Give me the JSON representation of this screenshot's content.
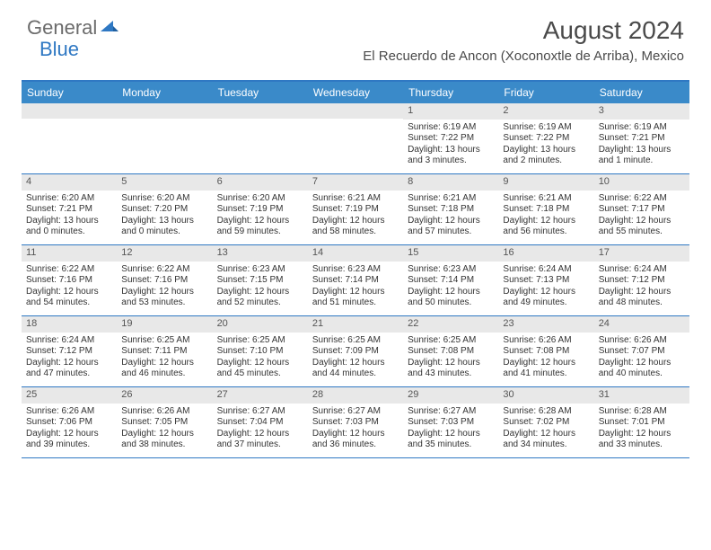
{
  "brand": {
    "part1": "General",
    "part2": "Blue"
  },
  "title": "August 2024",
  "location": "El Recuerdo de Ancon (Xoconoxtle de Arriba), Mexico",
  "dayheaders": [
    "Sunday",
    "Monday",
    "Tuesday",
    "Wednesday",
    "Thursday",
    "Friday",
    "Saturday"
  ],
  "colors": {
    "header_bg": "#3a8ac9",
    "border": "#2f78c3",
    "daynum_bg": "#e8e8e8",
    "text": "#333333",
    "logo_gray": "#6b6b6b",
    "logo_blue": "#2f78c3"
  },
  "weeks": [
    [
      {
        "day": "",
        "sunrise": "",
        "sunset": "",
        "daylight": ""
      },
      {
        "day": "",
        "sunrise": "",
        "sunset": "",
        "daylight": ""
      },
      {
        "day": "",
        "sunrise": "",
        "sunset": "",
        "daylight": ""
      },
      {
        "day": "",
        "sunrise": "",
        "sunset": "",
        "daylight": ""
      },
      {
        "day": "1",
        "sunrise": "Sunrise: 6:19 AM",
        "sunset": "Sunset: 7:22 PM",
        "daylight": "Daylight: 13 hours and 3 minutes."
      },
      {
        "day": "2",
        "sunrise": "Sunrise: 6:19 AM",
        "sunset": "Sunset: 7:22 PM",
        "daylight": "Daylight: 13 hours and 2 minutes."
      },
      {
        "day": "3",
        "sunrise": "Sunrise: 6:19 AM",
        "sunset": "Sunset: 7:21 PM",
        "daylight": "Daylight: 13 hours and 1 minute."
      }
    ],
    [
      {
        "day": "4",
        "sunrise": "Sunrise: 6:20 AM",
        "sunset": "Sunset: 7:21 PM",
        "daylight": "Daylight: 13 hours and 0 minutes."
      },
      {
        "day": "5",
        "sunrise": "Sunrise: 6:20 AM",
        "sunset": "Sunset: 7:20 PM",
        "daylight": "Daylight: 13 hours and 0 minutes."
      },
      {
        "day": "6",
        "sunrise": "Sunrise: 6:20 AM",
        "sunset": "Sunset: 7:19 PM",
        "daylight": "Daylight: 12 hours and 59 minutes."
      },
      {
        "day": "7",
        "sunrise": "Sunrise: 6:21 AM",
        "sunset": "Sunset: 7:19 PM",
        "daylight": "Daylight: 12 hours and 58 minutes."
      },
      {
        "day": "8",
        "sunrise": "Sunrise: 6:21 AM",
        "sunset": "Sunset: 7:18 PM",
        "daylight": "Daylight: 12 hours and 57 minutes."
      },
      {
        "day": "9",
        "sunrise": "Sunrise: 6:21 AM",
        "sunset": "Sunset: 7:18 PM",
        "daylight": "Daylight: 12 hours and 56 minutes."
      },
      {
        "day": "10",
        "sunrise": "Sunrise: 6:22 AM",
        "sunset": "Sunset: 7:17 PM",
        "daylight": "Daylight: 12 hours and 55 minutes."
      }
    ],
    [
      {
        "day": "11",
        "sunrise": "Sunrise: 6:22 AM",
        "sunset": "Sunset: 7:16 PM",
        "daylight": "Daylight: 12 hours and 54 minutes."
      },
      {
        "day": "12",
        "sunrise": "Sunrise: 6:22 AM",
        "sunset": "Sunset: 7:16 PM",
        "daylight": "Daylight: 12 hours and 53 minutes."
      },
      {
        "day": "13",
        "sunrise": "Sunrise: 6:23 AM",
        "sunset": "Sunset: 7:15 PM",
        "daylight": "Daylight: 12 hours and 52 minutes."
      },
      {
        "day": "14",
        "sunrise": "Sunrise: 6:23 AM",
        "sunset": "Sunset: 7:14 PM",
        "daylight": "Daylight: 12 hours and 51 minutes."
      },
      {
        "day": "15",
        "sunrise": "Sunrise: 6:23 AM",
        "sunset": "Sunset: 7:14 PM",
        "daylight": "Daylight: 12 hours and 50 minutes."
      },
      {
        "day": "16",
        "sunrise": "Sunrise: 6:24 AM",
        "sunset": "Sunset: 7:13 PM",
        "daylight": "Daylight: 12 hours and 49 minutes."
      },
      {
        "day": "17",
        "sunrise": "Sunrise: 6:24 AM",
        "sunset": "Sunset: 7:12 PM",
        "daylight": "Daylight: 12 hours and 48 minutes."
      }
    ],
    [
      {
        "day": "18",
        "sunrise": "Sunrise: 6:24 AM",
        "sunset": "Sunset: 7:12 PM",
        "daylight": "Daylight: 12 hours and 47 minutes."
      },
      {
        "day": "19",
        "sunrise": "Sunrise: 6:25 AM",
        "sunset": "Sunset: 7:11 PM",
        "daylight": "Daylight: 12 hours and 46 minutes."
      },
      {
        "day": "20",
        "sunrise": "Sunrise: 6:25 AM",
        "sunset": "Sunset: 7:10 PM",
        "daylight": "Daylight: 12 hours and 45 minutes."
      },
      {
        "day": "21",
        "sunrise": "Sunrise: 6:25 AM",
        "sunset": "Sunset: 7:09 PM",
        "daylight": "Daylight: 12 hours and 44 minutes."
      },
      {
        "day": "22",
        "sunrise": "Sunrise: 6:25 AM",
        "sunset": "Sunset: 7:08 PM",
        "daylight": "Daylight: 12 hours and 43 minutes."
      },
      {
        "day": "23",
        "sunrise": "Sunrise: 6:26 AM",
        "sunset": "Sunset: 7:08 PM",
        "daylight": "Daylight: 12 hours and 41 minutes."
      },
      {
        "day": "24",
        "sunrise": "Sunrise: 6:26 AM",
        "sunset": "Sunset: 7:07 PM",
        "daylight": "Daylight: 12 hours and 40 minutes."
      }
    ],
    [
      {
        "day": "25",
        "sunrise": "Sunrise: 6:26 AM",
        "sunset": "Sunset: 7:06 PM",
        "daylight": "Daylight: 12 hours and 39 minutes."
      },
      {
        "day": "26",
        "sunrise": "Sunrise: 6:26 AM",
        "sunset": "Sunset: 7:05 PM",
        "daylight": "Daylight: 12 hours and 38 minutes."
      },
      {
        "day": "27",
        "sunrise": "Sunrise: 6:27 AM",
        "sunset": "Sunset: 7:04 PM",
        "daylight": "Daylight: 12 hours and 37 minutes."
      },
      {
        "day": "28",
        "sunrise": "Sunrise: 6:27 AM",
        "sunset": "Sunset: 7:03 PM",
        "daylight": "Daylight: 12 hours and 36 minutes."
      },
      {
        "day": "29",
        "sunrise": "Sunrise: 6:27 AM",
        "sunset": "Sunset: 7:03 PM",
        "daylight": "Daylight: 12 hours and 35 minutes."
      },
      {
        "day": "30",
        "sunrise": "Sunrise: 6:28 AM",
        "sunset": "Sunset: 7:02 PM",
        "daylight": "Daylight: 12 hours and 34 minutes."
      },
      {
        "day": "31",
        "sunrise": "Sunrise: 6:28 AM",
        "sunset": "Sunset: 7:01 PM",
        "daylight": "Daylight: 12 hours and 33 minutes."
      }
    ]
  ]
}
